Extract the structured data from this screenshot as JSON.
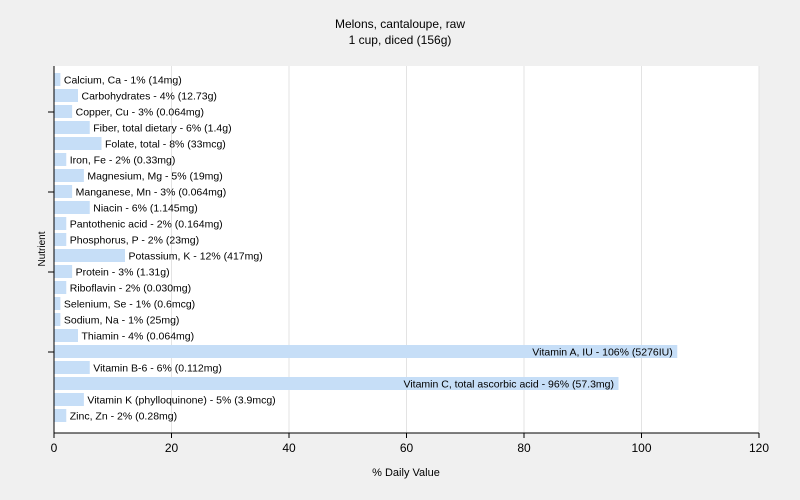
{
  "chart_data": {
    "type": "bar",
    "orientation": "horizontal",
    "title": "Melons, cantaloupe, raw",
    "subtitle": "1 cup, diced (156g)",
    "xlabel": "% Daily Value",
    "ylabel": "Nutrient",
    "xlim": [
      0,
      120
    ],
    "xticks": [
      0,
      20,
      40,
      60,
      80,
      100,
      120
    ],
    "grid": "vertical",
    "bar_color": "#c6def7",
    "background": "#ffffff",
    "categories": [
      "Calcium, Ca",
      "Carbohydrates",
      "Copper, Cu",
      "Fiber, total dietary",
      "Folate, total",
      "Iron, Fe",
      "Magnesium, Mg",
      "Manganese, Mn",
      "Niacin",
      "Pantothenic acid",
      "Phosphorus, P",
      "Potassium, K",
      "Protein",
      "Riboflavin",
      "Selenium, Se",
      "Sodium, Na",
      "Thiamin",
      "Vitamin A, IU",
      "Vitamin B-6",
      "Vitamin C, total ascorbic acid",
      "Vitamin K (phylloquinone)",
      "Zinc, Zn"
    ],
    "values": [
      1,
      4,
      3,
      6,
      8,
      2,
      5,
      3,
      6,
      2,
      2,
      12,
      3,
      2,
      1,
      1,
      4,
      106,
      6,
      96,
      5,
      2
    ],
    "labels": [
      "Calcium, Ca - 1% (14mg)",
      "Carbohydrates - 4% (12.73g)",
      "Copper, Cu - 3% (0.064mg)",
      "Fiber, total dietary - 6% (1.4g)",
      "Folate, total - 8% (33mcg)",
      "Iron, Fe - 2% (0.33mg)",
      "Magnesium, Mg - 5% (19mg)",
      "Manganese, Mn - 3% (0.064mg)",
      "Niacin - 6% (1.145mg)",
      "Pantothenic acid - 2% (0.164mg)",
      "Phosphorus, P - 2% (23mg)",
      "Potassium, K - 12% (417mg)",
      "Protein - 3% (1.31g)",
      "Riboflavin - 2% (0.030mg)",
      "Selenium, Se - 1% (0.6mcg)",
      "Sodium, Na - 1% (25mg)",
      "Thiamin - 4% (0.064mg)",
      "Vitamin A, IU - 106% (5276IU)",
      "Vitamin B-6 - 6% (0.112mg)",
      "Vitamin C, total ascorbic acid - 96% (57.3mg)",
      "Vitamin K (phylloquinone) - 5% (3.9mcg)",
      "Zinc, Zn - 2% (0.28mg)"
    ]
  }
}
